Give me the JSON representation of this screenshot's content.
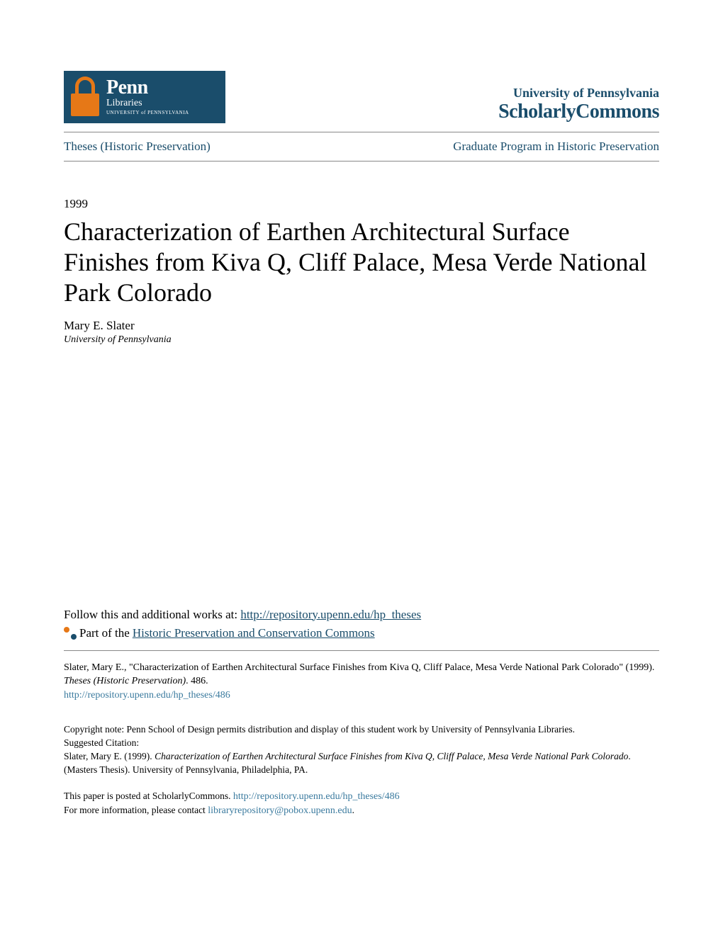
{
  "header": {
    "logo": {
      "penn": "Penn",
      "libraries": "Libraries",
      "univ": "UNIVERSITY of PENNSYLVANIA"
    },
    "univ_name": "University of Pennsylvania",
    "scholarly": "ScholarlyCommons"
  },
  "nav": {
    "left": "Theses (Historic Preservation)",
    "right": "Graduate Program in Historic Preservation"
  },
  "year": "1999",
  "title": "Characterization of Earthen Architectural Surface Finishes from Kiva Q, Cliff Palace, Mesa Verde National Park Colorado",
  "author": "Mary E. Slater",
  "affiliation": "University of Pennsylvania",
  "follow": {
    "prefix": "Follow this and additional works at: ",
    "url": "http://repository.upenn.edu/hp_theses"
  },
  "part_of": {
    "prefix": " Part of the ",
    "link": "Historic Preservation and Conservation Commons"
  },
  "citation": {
    "text1": "Slater, Mary E., \"Characterization of Earthen Architectural Surface Finishes from Kiva Q, Cliff Palace, Mesa Verde National Park Colorado\" (1999). ",
    "text2": "Theses (Historic Preservation)",
    "text3": ". 486.",
    "url": "http://repository.upenn.edu/hp_theses/486"
  },
  "copyright": {
    "line1": "Copyright note: Penn School of Design permits distribution and display of this student work by University of Pennsylvania Libraries.",
    "line2": "Suggested Citation:",
    "line3a": "Slater, Mary E. (1999). ",
    "line3b": "Characterization of Earthen Architectural Surface Finishes from Kiva Q, Cliff Palace, Mesa Verde National Park Colorado",
    "line3c": ". (Masters Thesis). University of Pennsylvania, Philadelphia, PA."
  },
  "footer": {
    "line1a": "This paper is posted at ScholarlyCommons. ",
    "line1b": "http://repository.upenn.edu/hp_theses/486",
    "line2a": "For more information, please contact ",
    "line2b": "libraryrepository@pobox.upenn.edu",
    "line2c": "."
  }
}
